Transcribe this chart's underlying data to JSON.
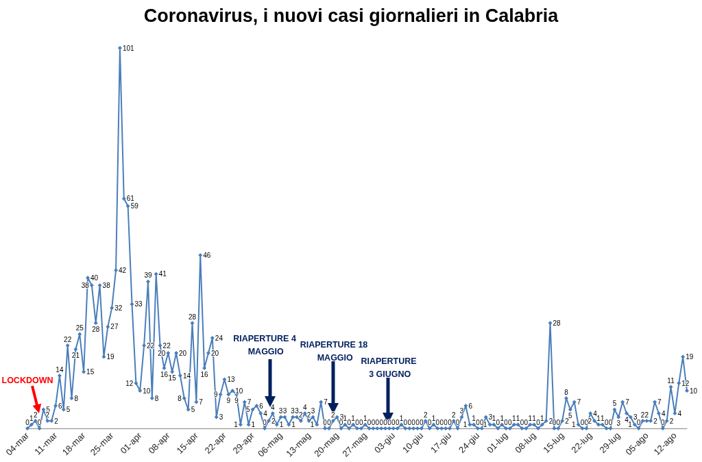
{
  "chart_data": {
    "type": "line",
    "title": "Coronavirus, i nuovi casi giornalieri in Calabria",
    "categories": [
      "04-mar",
      null,
      null,
      null,
      null,
      null,
      null,
      "11-mar",
      null,
      null,
      null,
      null,
      null,
      null,
      "18-mar",
      null,
      null,
      null,
      null,
      null,
      null,
      "25-mar",
      null,
      null,
      null,
      null,
      null,
      null,
      "01-apr",
      null,
      null,
      null,
      null,
      null,
      null,
      "08-apr",
      null,
      null,
      null,
      null,
      null,
      null,
      "15-apr",
      null,
      null,
      null,
      null,
      null,
      null,
      "22-apr",
      null,
      null,
      null,
      null,
      null,
      null,
      "29-apr",
      null,
      null,
      null,
      null,
      null,
      null,
      "06-mag",
      null,
      null,
      null,
      null,
      null,
      null,
      "13-mag",
      null,
      null,
      null,
      null,
      null,
      null,
      "20-mag",
      null,
      null,
      null,
      null,
      null,
      null,
      "27-mag",
      null,
      null,
      null,
      null,
      null,
      null,
      "03-giu",
      null,
      null,
      null,
      null,
      null,
      null,
      "10-giu",
      null,
      null,
      null,
      null,
      null,
      null,
      "17-giu",
      null,
      null,
      null,
      null,
      null,
      null,
      "24-giu",
      null,
      null,
      null,
      null,
      null,
      null,
      "01-lug",
      null,
      null,
      null,
      null,
      null,
      null,
      "08-lug",
      null,
      null,
      null,
      null,
      null,
      null,
      "15-lug",
      null,
      null,
      null,
      null,
      null,
      null,
      "22-lug",
      null,
      null,
      null,
      null,
      null,
      null,
      "29-lug",
      null,
      null,
      null,
      null,
      null,
      null,
      "05-ago",
      null,
      null,
      null,
      null,
      null,
      null,
      "12-ago",
      null,
      null,
      null
    ],
    "values": [
      0,
      1,
      2,
      0,
      5,
      2,
      2,
      6,
      14,
      5,
      22,
      8,
      21,
      25,
      15,
      40,
      38,
      28,
      38,
      19,
      27,
      32,
      42,
      101,
      61,
      59,
      33,
      12,
      10,
      22,
      39,
      8,
      41,
      22,
      16,
      20,
      15,
      20,
      14,
      8,
      5,
      28,
      7,
      46,
      16,
      20,
      24,
      3,
      9,
      13,
      9,
      10,
      9,
      1,
      7,
      1,
      5,
      6,
      4,
      0,
      2,
      4,
      1,
      3,
      3,
      1,
      3,
      3,
      2,
      4,
      2,
      3,
      1,
      7,
      0,
      0,
      2,
      3,
      0,
      1,
      0,
      1,
      0,
      0,
      1,
      0,
      0,
      0,
      0,
      0,
      0,
      0,
      0,
      1,
      0,
      0,
      0,
      0,
      0,
      2,
      0,
      1,
      0,
      0,
      0,
      0,
      2,
      0,
      3,
      6,
      1,
      1,
      0,
      0,
      3,
      1,
      1,
      0,
      1,
      0,
      0,
      1,
      1,
      0,
      0,
      1,
      1,
      0,
      1,
      2,
      28,
      0,
      0,
      2,
      8,
      5,
      7,
      1,
      0,
      0,
      4,
      2,
      1,
      1,
      0,
      0,
      5,
      3,
      7,
      4,
      3,
      1,
      0,
      2,
      2,
      2,
      7,
      4,
      0,
      2,
      11,
      4,
      12,
      19,
      10
    ],
    "color": "#4a7ebb",
    "marker": "diamond",
    "line_style": "solid",
    "data_labels": true,
    "tick_labels": "x",
    "annotations": [
      "LOCKDOWN",
      "RIAPERTURE 4 MAGGIO",
      "RIAPERTURE 18 MAGGIO",
      "RIAPERTURE 3 GIUGNO"
    ]
  }
}
